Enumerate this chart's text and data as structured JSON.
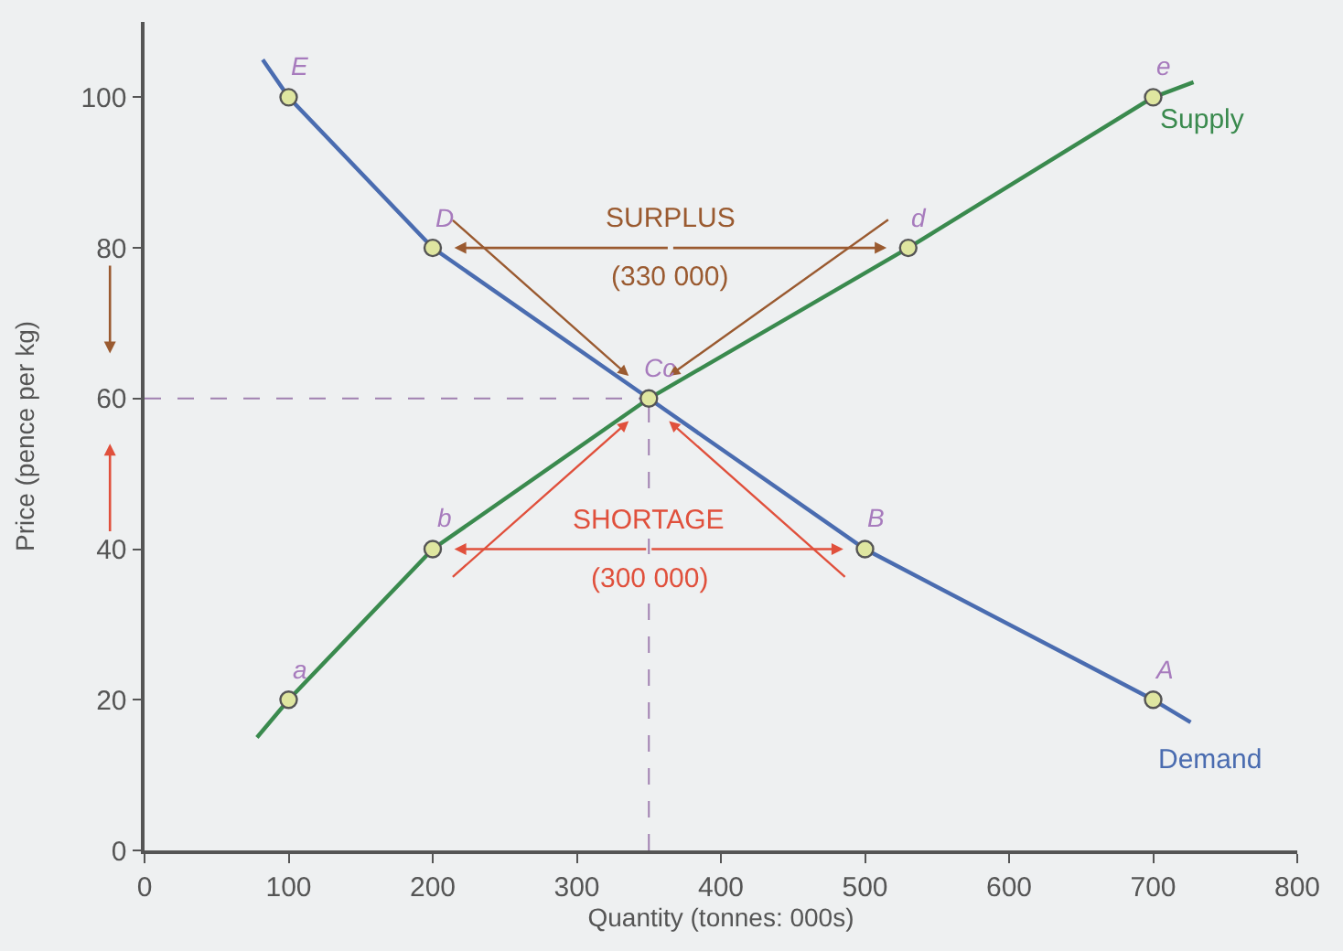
{
  "chart_data": {
    "type": "line",
    "xlabel": "Quantity (tonnes: 000s)",
    "ylabel": "Price (pence per kg)",
    "xlim": [
      0,
      800
    ],
    "xticks": [
      0,
      100,
      200,
      300,
      400,
      500,
      600,
      700,
      800
    ],
    "ylim": [
      0,
      110
    ],
    "yticks": [
      0,
      20,
      40,
      60,
      80,
      100
    ],
    "grid": false,
    "series": [
      {
        "name": "Demand",
        "color": "#4a6cb0",
        "marker": "none",
        "x": [
          82,
          100,
          200,
          350,
          500,
          700,
          726
        ],
        "values": [
          105,
          100,
          80,
          60,
          40,
          20,
          17
        ]
      },
      {
        "name": "Supply",
        "color": "#3a8a4e",
        "marker": "none",
        "x": [
          78,
          100,
          200,
          350,
          530,
          700,
          728
        ],
        "values": [
          15,
          20,
          40,
          60,
          80,
          100,
          102
        ]
      },
      {
        "color": "#dfe6a0",
        "type": "scatter",
        "marker": "circle",
        "x": [
          100,
          200,
          350,
          500,
          700
        ],
        "values": [
          100,
          80,
          60,
          40,
          20
        ]
      },
      {
        "color": "#dfe6a0",
        "type": "scatter",
        "marker": "circle",
        "x": [
          100,
          200,
          530,
          700
        ],
        "values": [
          20,
          40,
          80,
          100
        ]
      }
    ],
    "ref_lines": [
      {
        "axis": "x",
        "value": 350,
        "color": "#a080b0",
        "line_style": "dashed"
      },
      {
        "axis": "y",
        "value": 60,
        "color": "#a080b0",
        "line_style": "dashed"
      }
    ],
    "annotations": [
      {
        "text": "E",
        "x": 100,
        "y": 100
      },
      {
        "text": "D",
        "x": 200,
        "y": 80
      },
      {
        "text": "Cc",
        "x": 350,
        "y": 60
      },
      {
        "text": "B",
        "x": 500,
        "y": 40
      },
      {
        "text": "A",
        "x": 700,
        "y": 20
      },
      {
        "text": "a",
        "x": 100,
        "y": 20
      },
      {
        "text": "b",
        "x": 200,
        "y": 40
      },
      {
        "text": "d",
        "x": 530,
        "y": 80
      },
      {
        "text": "e",
        "x": 700,
        "y": 100
      },
      "SURPLUS",
      "(330 000)",
      "SHORTAGE",
      "(300 000)"
    ]
  }
}
